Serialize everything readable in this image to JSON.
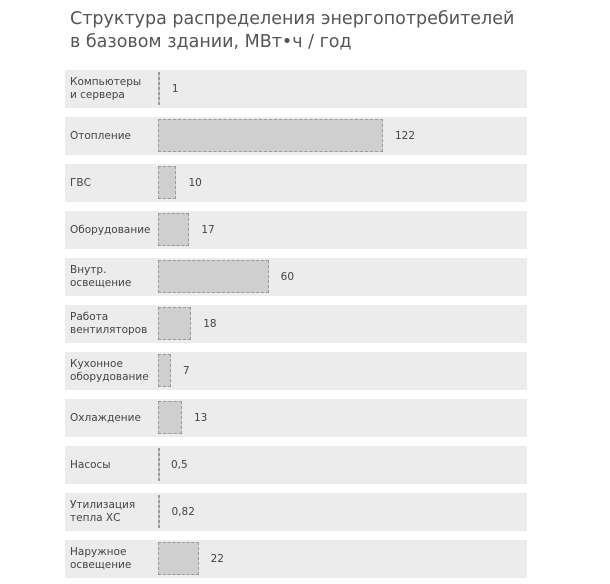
{
  "chart_data": {
    "type": "bar",
    "orientation": "horizontal",
    "title": "Структура  распределения энергопотребителей\nв базовом здании, МВт•ч / год",
    "categories": [
      "Компьютеры\nи сервера",
      "Отопление",
      "ГВС",
      "Оборудование",
      "Внутр.\nосвещение",
      "Работа\nвентиляторов",
      "Кухонное\nоборудование",
      "Охлаждение",
      "Насосы",
      "Утилизация\nтепла ХС",
      "Наружное\nосвещение"
    ],
    "values": [
      1,
      122,
      10,
      17,
      60,
      18,
      7,
      13,
      0.5,
      0.82,
      22
    ],
    "value_labels": [
      "1",
      "122",
      "10",
      "17",
      "60",
      "18",
      "7",
      "13",
      "0,5",
      "0,82",
      "22"
    ],
    "color": "#cfcfcf"
  }
}
